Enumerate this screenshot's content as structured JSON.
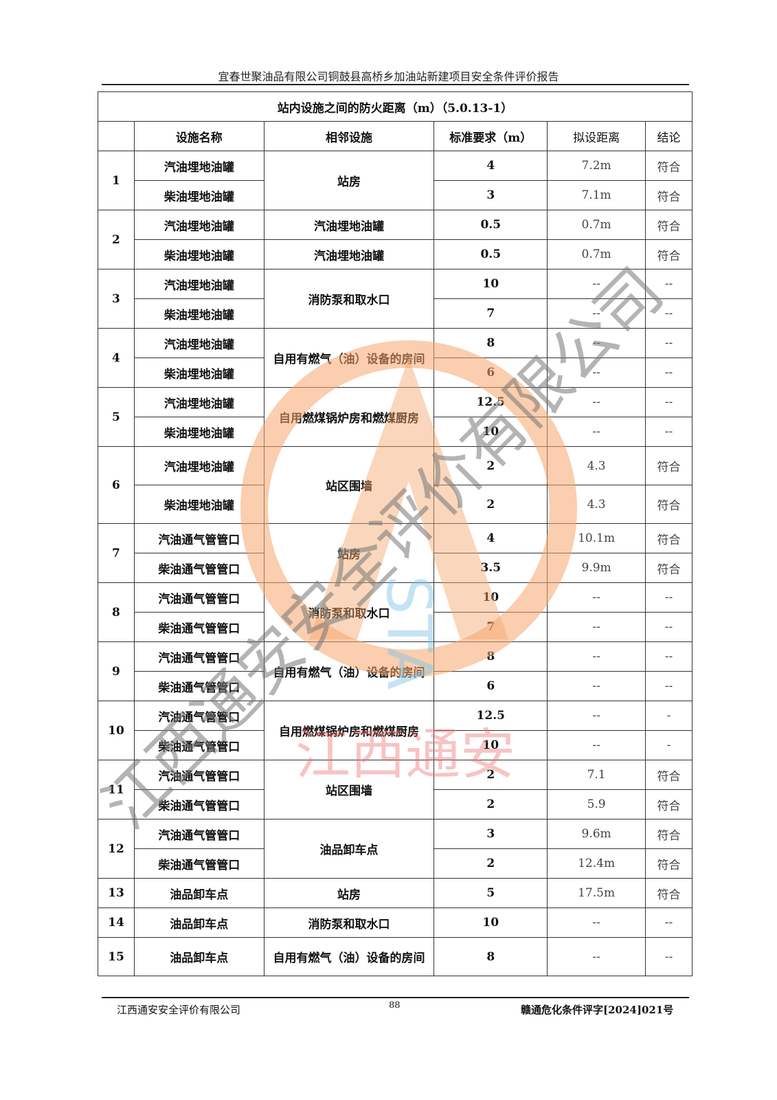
{
  "header": "宜春世聚油品有限公司铜鼓县高桥乡加油站新建项目安全条件评价报告",
  "table": {
    "title": "站内设施之间的防火距离（m）（5.0.13-1）",
    "columns": [
      "",
      "设施名称",
      "相邻设施",
      "标准要求（m）",
      "拟设距离",
      "结论"
    ],
    "groups": [
      {
        "no": "1",
        "adjacent": "站房",
        "rows": [
          {
            "facility": "汽油埋地油罐",
            "standard": "4",
            "distance": "7.2m",
            "conclusion": "符合"
          },
          {
            "facility": "柴油埋地油罐",
            "standard": "3",
            "distance": "7.1m",
            "conclusion": "符合"
          }
        ]
      },
      {
        "no": "2",
        "rows": [
          {
            "facility": "汽油埋地油罐",
            "adjacent": "汽油埋地油罐",
            "standard": "0.5",
            "distance": "0.7m",
            "conclusion": "符合"
          },
          {
            "facility": "柴油埋地油罐",
            "adjacent": "汽油埋地油罐",
            "standard": "0.5",
            "distance": "0.7m",
            "conclusion": "符合"
          }
        ]
      },
      {
        "no": "3",
        "adjacent": "消防泵和取水口",
        "rows": [
          {
            "facility": "汽油埋地油罐",
            "standard": "10",
            "distance": "--",
            "conclusion": "--"
          },
          {
            "facility": "柴油埋地油罐",
            "standard": "7",
            "distance": "--",
            "conclusion": "--"
          }
        ]
      },
      {
        "no": "4",
        "adjacent": "自用有燃气（油）设备的房间",
        "rows": [
          {
            "facility": "汽油埋地油罐",
            "standard": "8",
            "distance": "--",
            "conclusion": "--"
          },
          {
            "facility": "柴油埋地油罐",
            "standard": "6",
            "distance": "--",
            "conclusion": "--"
          }
        ]
      },
      {
        "no": "5",
        "adjacent": "自用燃煤锅炉房和燃煤厨房",
        "rows": [
          {
            "facility": "汽油埋地油罐",
            "standard": "12.5",
            "distance": "--",
            "conclusion": "--"
          },
          {
            "facility": "柴油埋地油罐",
            "standard": "10",
            "distance": "--",
            "conclusion": "--"
          }
        ]
      },
      {
        "no": "6",
        "adjacent": "站区围墙",
        "tall": true,
        "rows": [
          {
            "facility": "汽油埋地油罐",
            "standard": "2",
            "distance": "4.3",
            "conclusion": "符合"
          },
          {
            "facility": "柴油埋地油罐",
            "standard": "2",
            "distance": "4.3",
            "conclusion": "符合"
          }
        ]
      },
      {
        "no": "7",
        "adjacent": "站房",
        "rows": [
          {
            "facility": "汽油通气管管口",
            "standard": "4",
            "distance": "10.1m",
            "conclusion": "符合"
          },
          {
            "facility": "柴油通气管管口",
            "standard": "3.5",
            "distance": "9.9m",
            "conclusion": "符合"
          }
        ]
      },
      {
        "no": "8",
        "adjacent": "消防泵和取水口",
        "rows": [
          {
            "facility": "汽油通气管管口",
            "standard": "10",
            "distance": "--",
            "conclusion": "--"
          },
          {
            "facility": "柴油通气管管口",
            "standard": "7",
            "distance": "--",
            "conclusion": "--"
          }
        ]
      },
      {
        "no": "9",
        "adjacent": "自用有燃气（油）设备的房间",
        "rows": [
          {
            "facility": "汽油通气管管口",
            "standard": "8",
            "distance": "--",
            "conclusion": "--"
          },
          {
            "facility": "柴油通气管管口",
            "standard": "6",
            "distance": "--",
            "conclusion": "--"
          }
        ]
      },
      {
        "no": "10",
        "adjacent": "自用燃煤锅炉房和燃煤厨房",
        "rows": [
          {
            "facility": "汽油通气管管口",
            "standard": "12.5",
            "distance": "--",
            "conclusion": "-"
          },
          {
            "facility": "柴油通气管管口",
            "standard": "10",
            "distance": "--",
            "conclusion": "-"
          }
        ]
      },
      {
        "no": "11",
        "adjacent": "站区围墙",
        "rows": [
          {
            "facility": "汽油通气管管口",
            "standard": "2",
            "distance": "7.1",
            "conclusion": "符合"
          },
          {
            "facility": "柴油通气管管口",
            "standard": "2",
            "distance": "5.9",
            "conclusion": "符合"
          }
        ]
      },
      {
        "no": "12",
        "adjacent": "油品卸车点",
        "rows": [
          {
            "facility": "汽油通气管管口",
            "standard": "3",
            "distance": "9.6m",
            "conclusion": "符合"
          },
          {
            "facility": "柴油通气管管口",
            "standard": "2",
            "distance": "12.4m",
            "conclusion": "符合"
          }
        ]
      },
      {
        "no": "13",
        "adjacent": "站房",
        "rows": [
          {
            "facility": "油品卸车点",
            "standard": "5",
            "distance": "17.5m",
            "conclusion": "符合"
          }
        ]
      },
      {
        "no": "14",
        "adjacent": "消防泵和取水口",
        "rows": [
          {
            "facility": "油品卸车点",
            "standard": "10",
            "distance": "--",
            "conclusion": "--"
          }
        ]
      },
      {
        "no": "15",
        "adjacent": "自用有燃气（油）设备的房间",
        "tall": true,
        "rows": [
          {
            "facility": "油品卸车点",
            "standard": "8",
            "distance": "--",
            "conclusion": "--"
          }
        ]
      }
    ]
  },
  "watermark": {
    "text": "江西通安安全评价有限公司",
    "logo_text": "江西通安",
    "letters": "STA",
    "colors": {
      "circle": "#f5a66b",
      "text": "#888888",
      "red": "#ef6b6b",
      "blue": "#7cc3e8"
    }
  },
  "footer": {
    "company": "江西通安安全评价有限公司",
    "page": "88",
    "doc_no": "赣通危化条件评字[2024]021号"
  }
}
